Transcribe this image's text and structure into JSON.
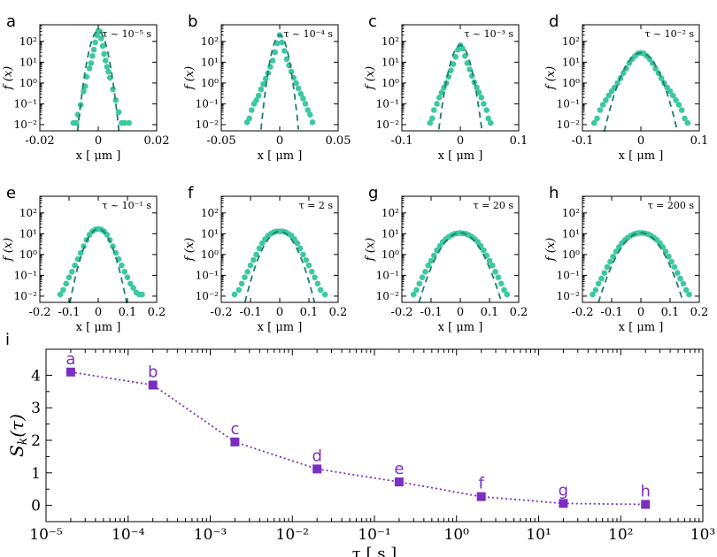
{
  "colors": {
    "points": "#3cc8a0",
    "gauss": "#1e7e6a",
    "kurt": "#7a2fc0",
    "axis": "#000000"
  },
  "chart_data": [
    {
      "type": "scatter",
      "panel": "a",
      "tau_label": "τ ~ 10⁻⁵ s",
      "xlabel": "x  [ μm ]",
      "ylabel": "f (x)",
      "xlim": [
        -0.02,
        0.02
      ],
      "xticks": [
        "-0.02",
        "0",
        "0.02"
      ],
      "xtick_values": [
        -0.02,
        0,
        0.02
      ],
      "ylim_log10": [
        -2.3,
        2.8
      ],
      "yticks": [
        "10⁻²",
        "10⁻¹",
        "10⁰",
        "10¹",
        "10²"
      ],
      "gauss_sigma": 0.0015,
      "points": [
        [
          -0.0085,
          0.012
        ],
        [
          -0.0075,
          0.012
        ],
        [
          -0.007,
          0.03
        ],
        [
          -0.006,
          0.09
        ],
        [
          -0.005,
          0.4
        ],
        [
          -0.0045,
          0.7
        ],
        [
          -0.004,
          2
        ],
        [
          -0.003,
          5
        ],
        [
          -0.0025,
          9
        ],
        [
          -0.002,
          20
        ],
        [
          -0.0015,
          40
        ],
        [
          -0.001,
          90
        ],
        [
          -0.0005,
          200
        ],
        [
          0,
          320
        ],
        [
          0.0005,
          300
        ],
        [
          0.001,
          140
        ],
        [
          0.0015,
          60
        ],
        [
          0.002,
          25
        ],
        [
          0.0025,
          12
        ],
        [
          0.003,
          6
        ],
        [
          0.0035,
          3.5
        ],
        [
          0.004,
          1.8
        ],
        [
          0.005,
          0.5
        ],
        [
          0.006,
          0.15
        ],
        [
          0.007,
          0.04
        ],
        [
          0.008,
          0.012
        ],
        [
          0.009,
          0.012
        ],
        [
          0.0105,
          0.012
        ]
      ]
    },
    {
      "type": "scatter",
      "panel": "b",
      "tau_label": "τ ~ 10⁻⁴ s",
      "xlabel": "x  [ μm ]",
      "ylabel": "f (x)",
      "xlim": [
        -0.05,
        0.05
      ],
      "xticks": [
        "-0.05",
        "0",
        "0.05"
      ],
      "xtick_values": [
        -0.05,
        0,
        0.05
      ],
      "ylim_log10": [
        -2.3,
        2.8
      ],
      "yticks": [
        "10⁻²",
        "10⁻¹",
        "10⁰",
        "10¹",
        "10²"
      ],
      "gauss_sigma": 0.0035,
      "points": [
        [
          -0.028,
          0.013
        ],
        [
          -0.026,
          0.02
        ],
        [
          -0.024,
          0.05
        ],
        [
          -0.022,
          0.1
        ],
        [
          -0.02,
          0.15
        ],
        [
          -0.018,
          0.25
        ],
        [
          -0.016,
          0.5
        ],
        [
          -0.014,
          0.9
        ],
        [
          -0.012,
          1.6
        ],
        [
          -0.01,
          3
        ],
        [
          -0.008,
          6
        ],
        [
          -0.006,
          12
        ],
        [
          -0.004,
          30
        ],
        [
          -0.002,
          80
        ],
        [
          0,
          200
        ],
        [
          0.002,
          90
        ],
        [
          0.004,
          35
        ],
        [
          0.006,
          14
        ],
        [
          0.008,
          7
        ],
        [
          0.01,
          3.5
        ],
        [
          0.012,
          1.8
        ],
        [
          0.014,
          1
        ],
        [
          0.016,
          0.55
        ],
        [
          0.018,
          0.3
        ],
        [
          0.02,
          0.18
        ],
        [
          0.022,
          0.1
        ],
        [
          0.024,
          0.05
        ],
        [
          0.026,
          0.03
        ],
        [
          0.028,
          0.013
        ]
      ]
    },
    {
      "type": "scatter",
      "panel": "c",
      "tau_label": "τ ~ 10⁻³ s",
      "xlabel": "x  [ μm ]",
      "ylabel": "f (x)",
      "xlim": [
        -0.1,
        0.1
      ],
      "xticks": [
        "-0.1",
        "0",
        "0.1"
      ],
      "xtick_values": [
        -0.1,
        0,
        0.1
      ],
      "ylim_log10": [
        -2.3,
        2.8
      ],
      "yticks": [
        "10⁻²",
        "10⁻¹",
        "10⁰",
        "10¹",
        "10²"
      ],
      "gauss_sigma": 0.0085,
      "points": [
        [
          -0.052,
          0.012
        ],
        [
          -0.048,
          0.02
        ],
        [
          -0.045,
          0.05
        ],
        [
          -0.04,
          0.1
        ],
        [
          -0.036,
          0.2
        ],
        [
          -0.032,
          0.35
        ],
        [
          -0.028,
          0.6
        ],
        [
          -0.024,
          1
        ],
        [
          -0.02,
          2
        ],
        [
          -0.016,
          4
        ],
        [
          -0.012,
          8
        ],
        [
          -0.008,
          18
        ],
        [
          -0.004,
          40
        ],
        [
          0,
          65
        ],
        [
          0.004,
          45
        ],
        [
          0.008,
          20
        ],
        [
          0.012,
          9
        ],
        [
          0.016,
          4.5
        ],
        [
          0.02,
          2.2
        ],
        [
          0.024,
          1.1
        ],
        [
          0.028,
          0.6
        ],
        [
          0.032,
          0.35
        ],
        [
          0.036,
          0.2
        ],
        [
          0.04,
          0.1
        ],
        [
          0.045,
          0.05
        ],
        [
          0.048,
          0.02
        ],
        [
          0.052,
          0.012
        ]
      ]
    },
    {
      "type": "scatter",
      "panel": "d",
      "tau_label": "τ ~ 10⁻² s",
      "xlabel": "x  [ μm ]",
      "ylabel": "f (x)",
      "xlim": [
        -0.1,
        0.1
      ],
      "xticks": [
        "-0.1",
        "0",
        "0.1"
      ],
      "xtick_values": [
        -0.1,
        0,
        0.1
      ],
      "ylim_log10": [
        -2.3,
        2.8
      ],
      "yticks": [
        "10⁻²",
        "10⁻¹",
        "10⁰",
        "10¹",
        "10²"
      ],
      "gauss_sigma": 0.015,
      "points": [
        [
          -0.08,
          0.012
        ],
        [
          -0.075,
          0.02
        ],
        [
          -0.07,
          0.05
        ],
        [
          -0.065,
          0.09
        ],
        [
          -0.06,
          0.15
        ],
        [
          -0.055,
          0.25
        ],
        [
          -0.05,
          0.4
        ],
        [
          -0.045,
          0.6
        ],
        [
          -0.04,
          1
        ],
        [
          -0.035,
          1.7
        ],
        [
          -0.03,
          3
        ],
        [
          -0.025,
          5
        ],
        [
          -0.02,
          9
        ],
        [
          -0.015,
          14
        ],
        [
          -0.01,
          20
        ],
        [
          -0.005,
          26
        ],
        [
          0,
          28
        ],
        [
          0.005,
          26
        ],
        [
          0.01,
          20
        ],
        [
          0.015,
          14
        ],
        [
          0.02,
          9
        ],
        [
          0.025,
          5
        ],
        [
          0.03,
          3
        ],
        [
          0.035,
          1.7
        ],
        [
          0.04,
          1
        ],
        [
          0.045,
          0.6
        ],
        [
          0.05,
          0.4
        ],
        [
          0.055,
          0.25
        ],
        [
          0.06,
          0.15
        ],
        [
          0.065,
          0.09
        ],
        [
          0.07,
          0.05
        ],
        [
          0.075,
          0.02
        ],
        [
          0.08,
          0.012
        ]
      ]
    },
    {
      "type": "scatter",
      "panel": "e",
      "tau_label": "τ ~ 10⁻¹ s",
      "xlabel": "x  [ μm ]",
      "ylabel": "f (x)",
      "xlim": [
        -0.2,
        0.2
      ],
      "xticks": [
        "-0.2",
        "-0.1",
        "0",
        "0.1",
        "0.2"
      ],
      "xtick_values": [
        -0.2,
        -0.1,
        0,
        0.1,
        0.2
      ],
      "ylim_log10": [
        -2.3,
        2.8
      ],
      "yticks": [
        "10⁻²",
        "10⁻¹",
        "10⁰",
        "10¹",
        "10²"
      ],
      "gauss_sigma": 0.024,
      "points": [
        [
          -0.13,
          0.012
        ],
        [
          -0.12,
          0.02
        ],
        [
          -0.11,
          0.04
        ],
        [
          -0.1,
          0.08
        ],
        [
          -0.09,
          0.15
        ],
        [
          -0.08,
          0.3
        ],
        [
          -0.07,
          0.6
        ],
        [
          -0.06,
          1.2
        ],
        [
          -0.05,
          2.5
        ],
        [
          -0.04,
          5
        ],
        [
          -0.03,
          9
        ],
        [
          -0.02,
          13
        ],
        [
          -0.01,
          16
        ],
        [
          0,
          17
        ],
        [
          0.01,
          16
        ],
        [
          0.02,
          13
        ],
        [
          0.03,
          9
        ],
        [
          0.04,
          5
        ],
        [
          0.05,
          2.5
        ],
        [
          0.06,
          1.2
        ],
        [
          0.07,
          0.6
        ],
        [
          0.08,
          0.3
        ],
        [
          0.09,
          0.15
        ],
        [
          0.1,
          0.08
        ],
        [
          0.11,
          0.04
        ],
        [
          0.12,
          0.025
        ],
        [
          0.13,
          0.015
        ],
        [
          0.14,
          0.012
        ],
        [
          0.15,
          0.012
        ]
      ]
    },
    {
      "type": "scatter",
      "panel": "f",
      "tau_label": "τ = 2 s",
      "xlabel": "x  [ μm ]",
      "ylabel": "f (x)",
      "xlim": [
        -0.2,
        0.2
      ],
      "xticks": [
        "-0.2",
        "-0.1",
        "0",
        "0.1",
        "0.2"
      ],
      "xtick_values": [
        -0.2,
        -0.1,
        0,
        0.1,
        0.2
      ],
      "ylim_log10": [
        -2.3,
        2.8
      ],
      "yticks": [
        "10⁻²",
        "10⁻¹",
        "10⁰",
        "10¹",
        "10²"
      ],
      "gauss_sigma": 0.03,
      "points": [
        [
          -0.155,
          0.012
        ],
        [
          -0.14,
          0.02
        ],
        [
          -0.13,
          0.04
        ],
        [
          -0.12,
          0.08
        ],
        [
          -0.11,
          0.15
        ],
        [
          -0.1,
          0.3
        ],
        [
          -0.09,
          0.55
        ],
        [
          -0.08,
          1
        ],
        [
          -0.07,
          2
        ],
        [
          -0.06,
          3.5
        ],
        [
          -0.05,
          5.5
        ],
        [
          -0.04,
          8
        ],
        [
          -0.03,
          10
        ],
        [
          -0.02,
          12
        ],
        [
          -0.01,
          13
        ],
        [
          0,
          13
        ],
        [
          0.01,
          13
        ],
        [
          0.02,
          12
        ],
        [
          0.03,
          10
        ],
        [
          0.04,
          8
        ],
        [
          0.05,
          5.5
        ],
        [
          0.06,
          3.5
        ],
        [
          0.07,
          2
        ],
        [
          0.08,
          1
        ],
        [
          0.09,
          0.55
        ],
        [
          0.1,
          0.3
        ],
        [
          0.11,
          0.15
        ],
        [
          0.12,
          0.08
        ],
        [
          0.13,
          0.04
        ],
        [
          0.14,
          0.02
        ],
        [
          0.155,
          0.012
        ]
      ]
    },
    {
      "type": "scatter",
      "panel": "g",
      "tau_label": "τ = 20 s",
      "xlabel": "x  [ μm ]",
      "ylabel": "f (x)",
      "xlim": [
        -0.2,
        0.2
      ],
      "xticks": [
        "-0.2",
        "-0.1",
        "0",
        "0.1",
        "0.2"
      ],
      "xtick_values": [
        -0.2,
        -0.1,
        0,
        0.1,
        0.2
      ],
      "ylim_log10": [
        -2.3,
        2.8
      ],
      "yticks": [
        "10⁻²",
        "10⁻¹",
        "10⁰",
        "10¹",
        "10²"
      ],
      "gauss_sigma": 0.036,
      "points": [
        [
          -0.16,
          0.012
        ],
        [
          -0.15,
          0.02
        ],
        [
          -0.14,
          0.04
        ],
        [
          -0.13,
          0.08
        ],
        [
          -0.12,
          0.15
        ],
        [
          -0.11,
          0.3
        ],
        [
          -0.1,
          0.5
        ],
        [
          -0.09,
          0.9
        ],
        [
          -0.08,
          1.6
        ],
        [
          -0.07,
          2.6
        ],
        [
          -0.06,
          4
        ],
        [
          -0.05,
          5.5
        ],
        [
          -0.04,
          7
        ],
        [
          -0.03,
          8.5
        ],
        [
          -0.02,
          10
        ],
        [
          -0.01,
          10.5
        ],
        [
          0,
          11
        ],
        [
          0.01,
          10.5
        ],
        [
          0.02,
          10
        ],
        [
          0.03,
          8.5
        ],
        [
          0.04,
          7
        ],
        [
          0.05,
          5.5
        ],
        [
          0.06,
          4
        ],
        [
          0.07,
          2.6
        ],
        [
          0.08,
          1.6
        ],
        [
          0.09,
          0.9
        ],
        [
          0.1,
          0.5
        ],
        [
          0.11,
          0.3
        ],
        [
          0.12,
          0.15
        ],
        [
          0.13,
          0.08
        ],
        [
          0.14,
          0.04
        ],
        [
          0.15,
          0.02
        ],
        [
          0.16,
          0.012
        ]
      ]
    },
    {
      "type": "scatter",
      "panel": "h",
      "tau_label": "τ = 200 s",
      "xlabel": "x  [ μm ]",
      "ylabel": "f (x)",
      "xlim": [
        -0.2,
        0.2
      ],
      "xticks": [
        "-0.2",
        "-0.1",
        "0",
        "0.1",
        "0.2"
      ],
      "xtick_values": [
        -0.2,
        -0.1,
        0,
        0.1,
        0.2
      ],
      "ylim_log10": [
        -2.3,
        2.8
      ],
      "yticks": [
        "10⁻²",
        "10⁻¹",
        "10⁰",
        "10¹",
        "10²"
      ],
      "gauss_sigma": 0.037,
      "points": [
        [
          -0.165,
          0.012
        ],
        [
          -0.155,
          0.02
        ],
        [
          -0.145,
          0.04
        ],
        [
          -0.135,
          0.07
        ],
        [
          -0.125,
          0.13
        ],
        [
          -0.115,
          0.25
        ],
        [
          -0.105,
          0.45
        ],
        [
          -0.095,
          0.8
        ],
        [
          -0.085,
          1.4
        ],
        [
          -0.075,
          2.3
        ],
        [
          -0.065,
          3.5
        ],
        [
          -0.055,
          5
        ],
        [
          -0.045,
          6.5
        ],
        [
          -0.035,
          8
        ],
        [
          -0.025,
          9.5
        ],
        [
          -0.015,
          10.5
        ],
        [
          -0.005,
          11
        ],
        [
          0.005,
          11
        ],
        [
          0.015,
          10.5
        ],
        [
          0.025,
          9.5
        ],
        [
          0.035,
          8
        ],
        [
          0.045,
          6.5
        ],
        [
          0.055,
          5
        ],
        [
          0.065,
          3.5
        ],
        [
          0.075,
          2.3
        ],
        [
          0.085,
          1.4
        ],
        [
          0.095,
          0.8
        ],
        [
          0.105,
          0.45
        ],
        [
          0.115,
          0.25
        ],
        [
          0.125,
          0.13
        ],
        [
          0.135,
          0.07
        ],
        [
          0.145,
          0.04
        ],
        [
          0.155,
          0.02
        ],
        [
          0.165,
          0.012
        ]
      ]
    },
    {
      "type": "line",
      "panel": "i",
      "xlabel": "τ  [ s ]",
      "ylabel": "S_k(τ)",
      "ylabel_main": "S",
      "ylabel_sub": "k",
      "ylabel_rest": "(τ)",
      "xscale": "log",
      "xlim_log10": [
        -5,
        3
      ],
      "ylim": [
        -0.5,
        4.8
      ],
      "xticks": [
        "10⁻⁵",
        "10⁻⁴",
        "10⁻³",
        "10⁻²",
        "10⁻¹",
        "10⁰",
        "10¹",
        "10²",
        "10³"
      ],
      "xtick_exponents": [
        -5,
        -4,
        -3,
        -2,
        -1,
        0,
        1,
        2,
        3
      ],
      "yticks": [
        "0",
        "1",
        "2",
        "3",
        "4"
      ],
      "ytick_values": [
        0,
        1,
        2,
        3,
        4
      ],
      "x": [
        2e-05,
        0.0002,
        0.002,
        0.02,
        0.2,
        2,
        20,
        200
      ],
      "values": [
        4.1,
        3.7,
        1.95,
        1.12,
        0.72,
        0.27,
        0.06,
        0.03
      ],
      "point_labels": [
        "a",
        "b",
        "c",
        "d",
        "e",
        "f",
        "g",
        "h"
      ]
    }
  ]
}
